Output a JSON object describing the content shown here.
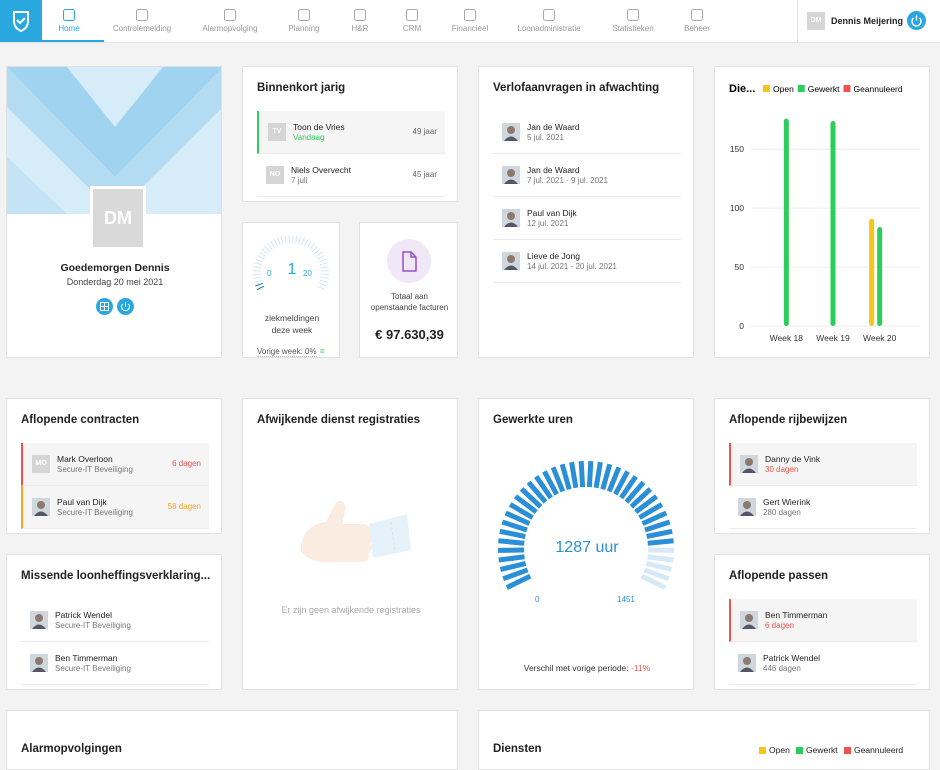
{
  "nav": {
    "items": [
      "Home",
      "Controlemelding",
      "Alarmopvolging",
      "Planning",
      "H&R",
      "CRM",
      "Financieel",
      "Loonadministratie",
      "Statistieken",
      "Beheer"
    ],
    "user_initials": "DM",
    "user_name": "Dennis Meijering"
  },
  "welcome": {
    "initials": "DM",
    "greeting": "Goedemorgen Dennis",
    "date": "Donderdag 20 mei 2021"
  },
  "birthdays": {
    "title": "Binnenkort jarig",
    "rows": [
      {
        "initials": "TV",
        "name": "Toon de Vries",
        "sub": "Vandaag",
        "right": "49 jaar"
      },
      {
        "initials": "NO",
        "name": "Niels Overvecht",
        "sub": "7 juli",
        "right": "45 jaar"
      }
    ]
  },
  "sick": {
    "min": 0,
    "current": 1,
    "max": 20,
    "label": "ziekmeldingen deze week",
    "previous": "Vorige week: 0%"
  },
  "invoices": {
    "label": "Totaal aan openstaande facturen",
    "amount": "€ 97.630,39"
  },
  "leave": {
    "title": "Verlofaanvragen in afwachting",
    "rows": [
      {
        "name": "Jan de Waard",
        "sub": "5 jul. 2021"
      },
      {
        "name": "Jan de Waard",
        "sub": "7 jul. 2021 - 9 jul. 2021"
      },
      {
        "name": "Paul van Dijk",
        "sub": "12 jul. 2021"
      },
      {
        "name": "Lieve de Jong",
        "sub": "14 jul. 2021 - 20 jul. 2021"
      }
    ]
  },
  "chart_data": {
    "type": "bar",
    "title": "Die...",
    "categories": [
      "Week 18",
      "Week 19",
      "Week 20"
    ],
    "series": [
      {
        "name": "Open",
        "color": "#f5c518",
        "values": [
          0,
          0,
          91
        ]
      },
      {
        "name": "Gewerkt",
        "color": "#2ecc5a",
        "values": [
          176,
          174,
          84
        ]
      },
      {
        "name": "Geannuleerd",
        "color": "#ef5350",
        "values": [
          0,
          0,
          0
        ]
      }
    ],
    "ylim": [
      0,
      185
    ],
    "yticks": [
      0,
      50,
      100,
      150
    ],
    "grid": true
  },
  "contracts": {
    "title": "Aflopende contracten",
    "rows": [
      {
        "initials": "MO",
        "name": "Mark Overloon",
        "sub": "Secure-IT Beveiliging",
        "right": "6 dagen"
      },
      {
        "name": "Paul van Dijk",
        "sub": "Secure-IT Beveiliging",
        "right": "58 dagen"
      }
    ]
  },
  "missing": {
    "title": "Missende loonheffingsverklaring...",
    "rows": [
      {
        "name": "Patrick Wendel",
        "sub": "Secure-IT Beveiliging"
      },
      {
        "name": "Ben Timmerman",
        "sub": "Secure-IT Beveiliging"
      }
    ]
  },
  "deviations": {
    "title": "Afwijkende dienst registraties",
    "empty": "Er zijn geen afwijkende registraties"
  },
  "hours": {
    "title": "Gewerkte uren",
    "value": 1287,
    "unit": "uur",
    "min": 0,
    "max": 1451,
    "comparison_label": "Verschil met vorige periode:",
    "comparison": "-11%"
  },
  "licenses": {
    "title": "Aflopende rijbewijzen",
    "rows": [
      {
        "name": "Danny de Vink",
        "sub": "30 dagen"
      },
      {
        "name": "Gert Wierink",
        "sub": "280 dagen"
      }
    ]
  },
  "passes": {
    "title": "Aflopende passen",
    "rows": [
      {
        "name": "Ben Timmerman",
        "sub": "6 dagen"
      },
      {
        "name": "Patrick Wendel",
        "sub": "446 dagen"
      }
    ]
  },
  "bottom": {
    "alarm_title": "Alarmopvolgingen",
    "services_title": "Diensten",
    "legend": [
      "Open",
      "Gewerkt",
      "Geannuleerd"
    ]
  }
}
